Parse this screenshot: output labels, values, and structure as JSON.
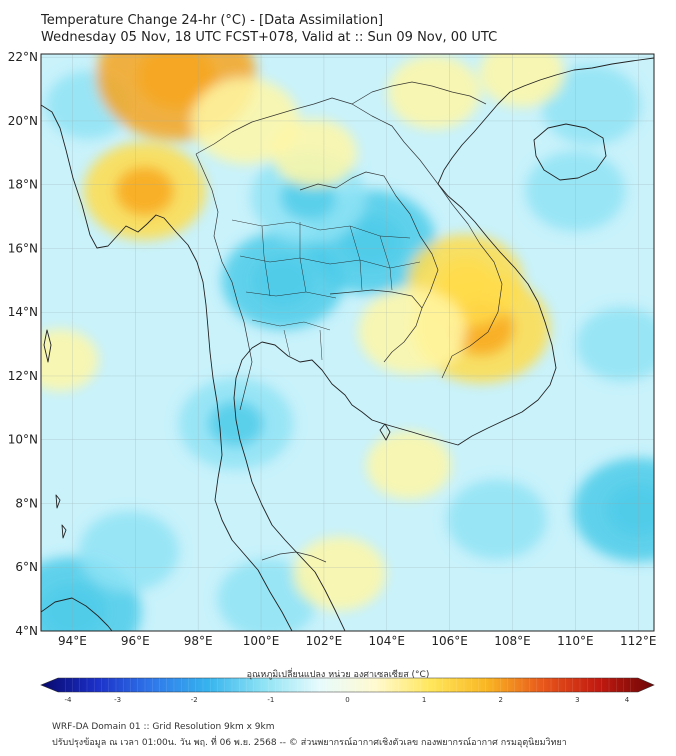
{
  "header": {
    "title": "Temperature Change 24-hr (°C) - [Data Assimilation]",
    "subtitle": "Wednesday 05 Nov, 18 UTC FCST+078, Valid at :: Sun 09 Nov, 00 UTC"
  },
  "map": {
    "lat_labels": [
      "22°N",
      "20°N",
      "18°N",
      "16°N",
      "14°N",
      "12°N",
      "10°N",
      "8°N",
      "6°N",
      "4°N"
    ],
    "lon_labels": [
      "94°E",
      "96°E",
      "98°E",
      "100°E",
      "102°E",
      "104°E",
      "106°E",
      "108°E",
      "110°E",
      "112°E"
    ],
    "lat_range": [
      4,
      22.1
    ],
    "lon_range": [
      93,
      112.5
    ],
    "colors": {
      "background": "#ffffff",
      "warm_light": "#fff7a6",
      "warm": "#ffdc4a",
      "warm_strong": "#f7a51c",
      "cool_light": "#c9f2fb",
      "cool": "#8fe3f4",
      "cool_strong": "#4ccbe9",
      "coastline": "#222222"
    },
    "warm_spots": [
      {
        "lon": 97.3,
        "lat": 21.4,
        "level": 1.4
      },
      {
        "lon": 96.3,
        "lat": 17.8,
        "level": 0.9
      },
      {
        "lon": 99.5,
        "lat": 20.0,
        "level": 0.7
      },
      {
        "lon": 107.0,
        "lat": 13.5,
        "level": 1.1
      },
      {
        "lon": 106.5,
        "lat": 15.0,
        "level": 0.8
      },
      {
        "lon": 104.8,
        "lat": 13.4,
        "level": 0.7
      },
      {
        "lon": 105.5,
        "lat": 20.9,
        "level": 0.5
      },
      {
        "lon": 108.3,
        "lat": 21.5,
        "level": 0.4
      },
      {
        "lon": 102.5,
        "lat": 5.8,
        "level": 0.5
      },
      {
        "lon": 104.7,
        "lat": 9.2,
        "level": 0.4
      },
      {
        "lon": 93.6,
        "lat": 12.5,
        "level": 0.3
      },
      {
        "lon": 101.7,
        "lat": 19.0,
        "level": 0.4
      }
    ],
    "cool_spots": [
      {
        "lon": 103.5,
        "lat": 16.2,
        "level": -1.0
      },
      {
        "lon": 100.7,
        "lat": 15.0,
        "level": -0.9
      },
      {
        "lon": 99.2,
        "lat": 10.5,
        "level": -0.8
      },
      {
        "lon": 101.5,
        "lat": 17.6,
        "level": -0.8
      },
      {
        "lon": 112.0,
        "lat": 7.8,
        "level": -1.0
      },
      {
        "lon": 107.5,
        "lat": 7.5,
        "level": -0.6
      },
      {
        "lon": 94.0,
        "lat": 4.6,
        "level": -1.1
      },
      {
        "lon": 95.8,
        "lat": 6.5,
        "level": -0.6
      },
      {
        "lon": 110.5,
        "lat": 20.5,
        "level": -0.6
      },
      {
        "lon": 111.5,
        "lat": 13.0,
        "level": -0.5
      },
      {
        "lon": 94.5,
        "lat": 20.5,
        "level": -0.4
      },
      {
        "lon": 100.2,
        "lat": 5.0,
        "level": -0.6
      },
      {
        "lon": 110.0,
        "lat": 17.8,
        "level": -0.6
      }
    ]
  },
  "colorbar": {
    "title": "อุณหภูมิเปลี่ยนแปลง หน่วย องศาเซลเซียส (°C)",
    "min": -4,
    "max": 4,
    "ticks": [
      "-4",
      "-3",
      "-2",
      "-1",
      "0",
      "1",
      "2",
      "3",
      "4"
    ],
    "stops": [
      "#08086b",
      "#1b30c8",
      "#2f78ea",
      "#36b4ee",
      "#8fe3f4",
      "#e7fbfd",
      "#fffad0",
      "#ffe65a",
      "#f9b623",
      "#e8571b",
      "#c21a10",
      "#6e0606"
    ]
  },
  "footer": {
    "line1": "WRF-DA Domain 01 :: Grid Resolution 9km x 9km",
    "line2": "ปรับปรุงข้อมูล ณ เวลา 01:00น. วัน พฤ. ที่ 06 พ.ย. 2568 -- © ส่วนพยากรณ์อากาศเชิงตัวเลข กองพยากรณ์อากาศ กรมอุตุนิยมวิทยา"
  }
}
